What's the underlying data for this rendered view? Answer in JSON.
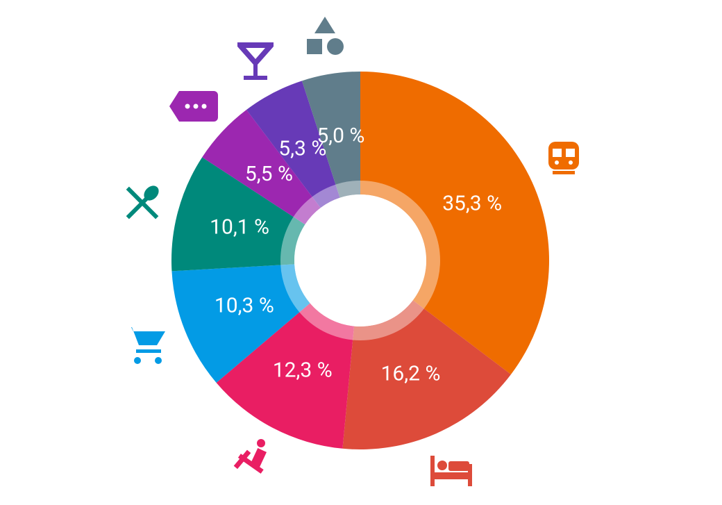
{
  "chart_data": {
    "type": "donut",
    "values": [
      35.3,
      16.2,
      12.3,
      10.3,
      10.1,
      5.5,
      5.3,
      5.0
    ],
    "value_labels": [
      "35,3 %",
      "16,2 %",
      "12,3 %",
      "10,3 %",
      "10,1 %",
      "5,5 %",
      "5,3 %",
      "5,0 %"
    ],
    "colors": [
      "#ef6c00",
      "#dd4b3a",
      "#e91e63",
      "#039be5",
      "#00897b",
      "#9c27b0",
      "#673ab7",
      "#607d8b"
    ]
  }
}
